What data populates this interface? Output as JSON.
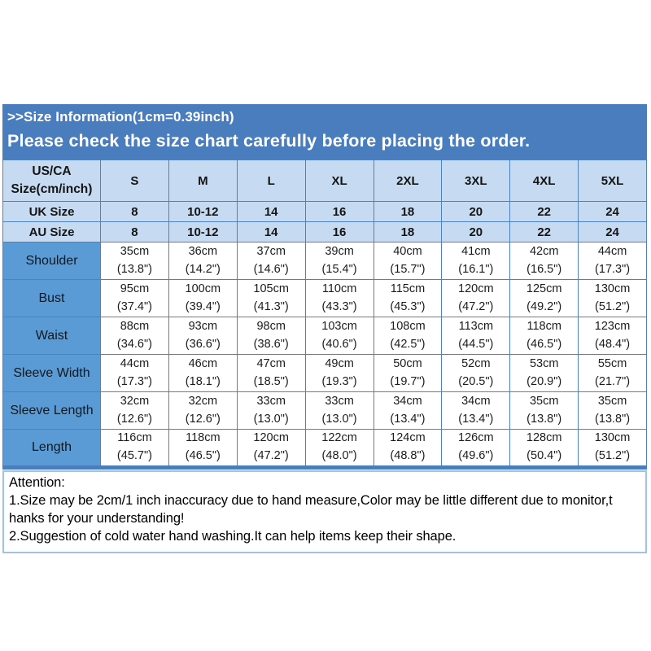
{
  "title": {
    "line1": ">>Size Information(1cm=0.39inch)",
    "line2": "Please check the size chart carefully before placing the order."
  },
  "colors": {
    "banner_blue": "#4a7dbd",
    "light_blue_cell": "#c6dbf1",
    "label_blue_cell": "#5b9bd5",
    "grid_line_blue": "#4f81bd",
    "attention_border": "#9dc3e6",
    "text_on_banner": "#ffffff",
    "table_text": "#141414"
  },
  "table": {
    "corner_label": "US/CA\nSize(cm/inch)",
    "size_headers": [
      "S",
      "M",
      "L",
      "XL",
      "2XL",
      "3XL",
      "4XL",
      "5XL"
    ],
    "size_rows": [
      {
        "label": "UK Size",
        "values": [
          "8",
          "10-12",
          "14",
          "16",
          "18",
          "20",
          "22",
          "24"
        ]
      },
      {
        "label": "AU Size",
        "values": [
          "8",
          "10-12",
          "14",
          "16",
          "18",
          "20",
          "22",
          "24"
        ]
      }
    ],
    "measure_rows": [
      {
        "label": "Shoulder",
        "values": [
          "35cm\n(13.8\")",
          "36cm\n(14.2\")",
          "37cm\n(14.6\")",
          "39cm\n(15.4\")",
          "40cm\n(15.7\")",
          "41cm\n(16.1\")",
          "42cm\n(16.5\")",
          "44cm\n(17.3\")"
        ]
      },
      {
        "label": "Bust",
        "values": [
          "95cm\n(37.4\")",
          "100cm\n(39.4\")",
          "105cm\n(41.3\")",
          "110cm\n(43.3\")",
          "115cm\n(45.3\")",
          "120cm\n(47.2\")",
          "125cm\n(49.2\")",
          "130cm\n(51.2\")"
        ]
      },
      {
        "label": "Waist",
        "values": [
          "88cm\n(34.6\")",
          "93cm\n(36.6\")",
          "98cm\n(38.6\")",
          "103cm\n(40.6\")",
          "108cm\n(42.5\")",
          "113cm\n(44.5\")",
          "118cm\n(46.5\")",
          "123cm\n(48.4\")"
        ]
      },
      {
        "label": "Sleeve Width",
        "values": [
          "44cm\n(17.3\")",
          "46cm\n(18.1\")",
          "47cm\n(18.5\")",
          "49cm\n(19.3\")",
          "50cm\n(19.7\")",
          "52cm\n(20.5\")",
          "53cm\n(20.9\")",
          "55cm\n(21.7\")"
        ]
      },
      {
        "label": "Sleeve Length",
        "values": [
          "32cm\n(12.6\")",
          "32cm\n(12.6\")",
          "33cm\n(13.0\")",
          "33cm\n(13.0\")",
          "34cm\n(13.4\")",
          "34cm\n(13.4\")",
          "35cm\n(13.8\")",
          "35cm\n(13.8\")"
        ]
      },
      {
        "label": "Length",
        "values": [
          "116cm\n(45.7\")",
          "118cm\n(46.5\")",
          "120cm\n(47.2\")",
          "122cm\n(48.0\")",
          "124cm\n(48.8\")",
          "126cm\n(49.6\")",
          "128cm\n(50.4\")",
          "130cm\n(51.2\")"
        ]
      }
    ]
  },
  "attention": {
    "heading": "Attention:",
    "lines": [
      "1.Size may be 2cm/1 inch inaccuracy due to hand measure,Color may be little different due to monitor,t",
      "hanks for your understanding!",
      "2.Suggestion of cold water hand washing.It can help items keep their shape."
    ]
  }
}
